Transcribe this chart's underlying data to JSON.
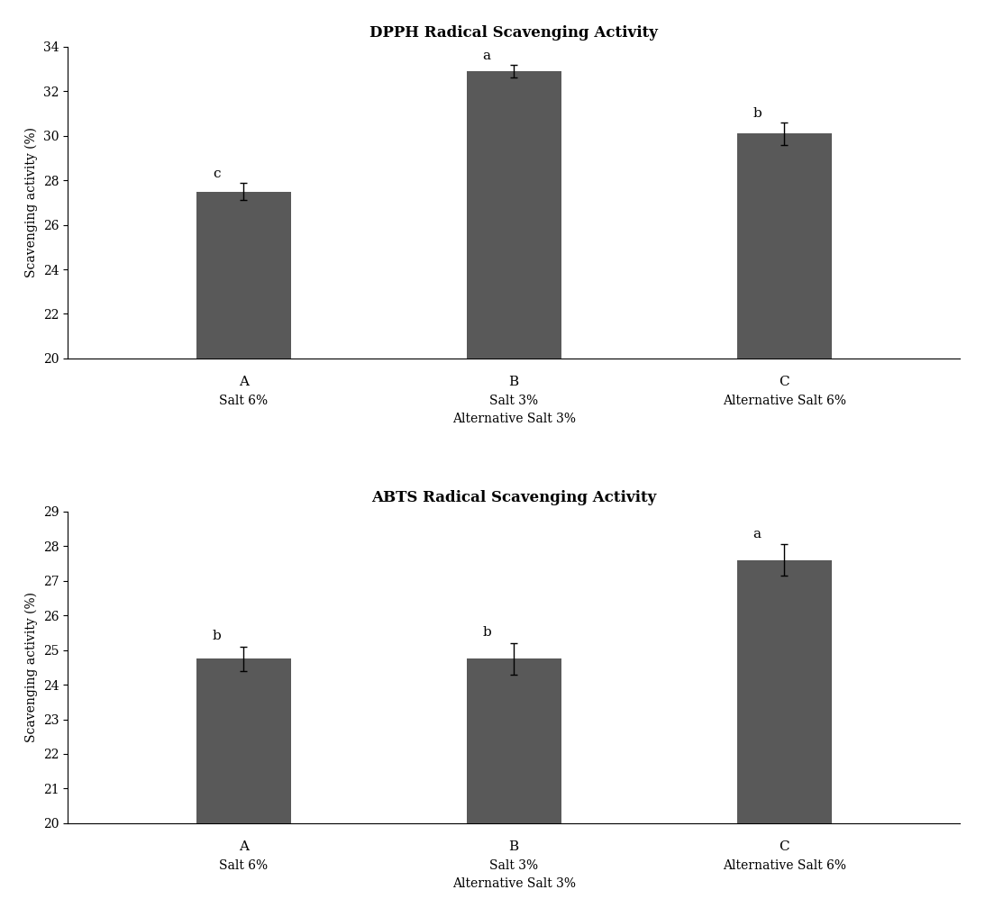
{
  "dpph": {
    "title": "DPPH Radical Scavenging Activity",
    "values": [
      27.5,
      32.9,
      30.1
    ],
    "errors": [
      0.4,
      0.3,
      0.5
    ],
    "letters": [
      "c",
      "a",
      "b"
    ],
    "ylim": [
      20,
      34
    ],
    "yticks": [
      20,
      22,
      24,
      26,
      28,
      30,
      32,
      34
    ]
  },
  "abts": {
    "title": "ABTS Radical Scavenging Activity",
    "values": [
      24.75,
      24.75,
      27.6
    ],
    "errors": [
      0.35,
      0.45,
      0.45
    ],
    "letters": [
      "b",
      "b",
      "a"
    ],
    "ylim": [
      20,
      29
    ],
    "yticks": [
      20,
      21,
      22,
      23,
      24,
      25,
      26,
      27,
      28,
      29
    ]
  },
  "x_positions": [
    0,
    1,
    2
  ],
  "x_labels_line1": [
    "A",
    "B",
    "C"
  ],
  "x_labels_line2": [
    "Salt 6%",
    "Salt 3%",
    "Alternative Salt 6%"
  ],
  "x_labels_line3": [
    "",
    "Alternative Salt 3%",
    ""
  ],
  "bar_color": "#595959",
  "bar_width": 0.35,
  "ylabel": "Scavenging activity (%)",
  "background_color": "#ffffff",
  "title_fontsize": 12,
  "label_fontsize": 10,
  "tick_fontsize": 10,
  "letter_fontsize": 11,
  "xtick_main_fontsize": 11,
  "xtick_sub_fontsize": 10
}
